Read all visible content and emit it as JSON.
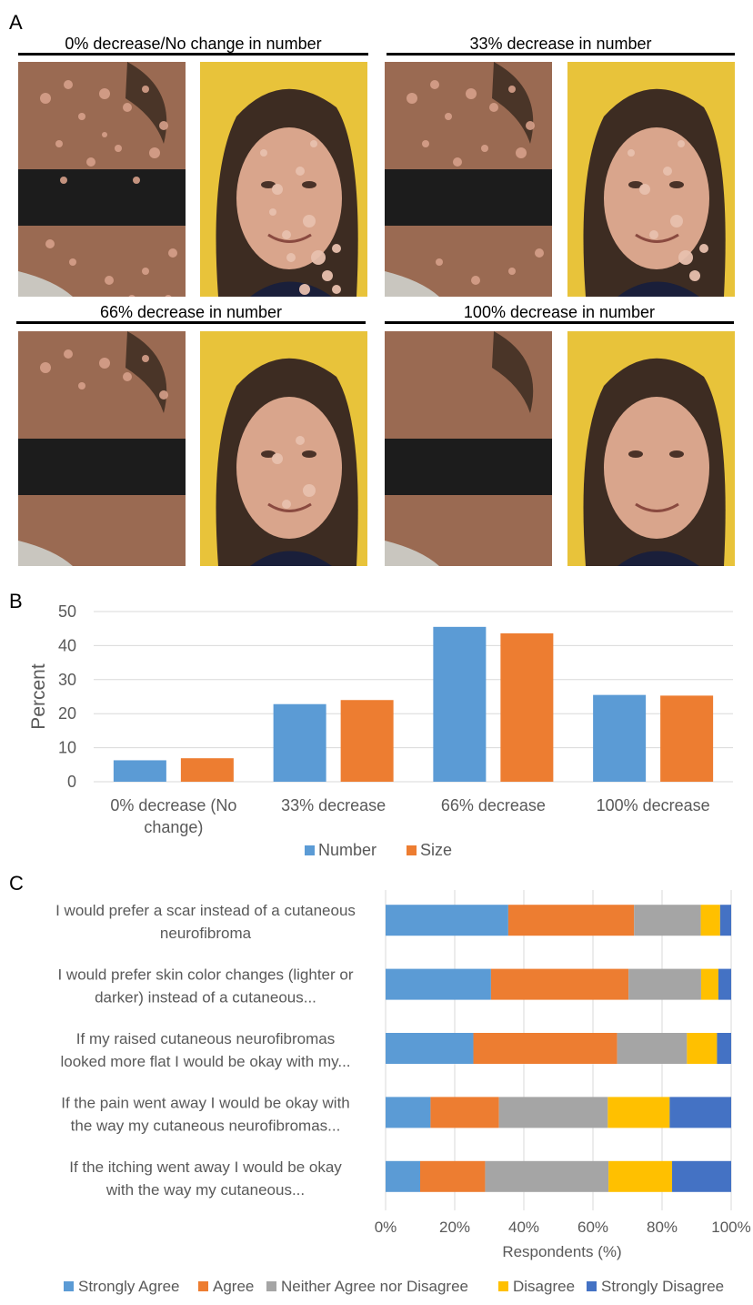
{
  "panel_a": {
    "letter": "A",
    "scenarios": [
      {
        "title": "0% decrease/No change in number",
        "lesions": 1.0
      },
      {
        "title": "33% decrease in number",
        "lesions": 0.67
      },
      {
        "title": "66% decrease in number",
        "lesions": 0.34
      },
      {
        "title": "100% decrease in number",
        "lesions": 0.0
      }
    ]
  },
  "chart_data": [
    {
      "panel": "B",
      "type": "bar",
      "categories": [
        [
          "0% decrease (No",
          "change)"
        ],
        [
          "33% decrease"
        ],
        [
          "66% decrease"
        ],
        [
          "100% decrease"
        ]
      ],
      "series": [
        {
          "name": "Number",
          "values": [
            6.3,
            22.8,
            45.5,
            25.5
          ],
          "color": "#5b9bd5"
        },
        {
          "name": "Size",
          "values": [
            6.9,
            24.0,
            43.6,
            25.3
          ],
          "color": "#ed7d31"
        }
      ],
      "ylabel": "Percent",
      "ylim": [
        0,
        50
      ],
      "yticks": [
        0,
        10,
        20,
        30,
        40,
        50
      ],
      "grid": true,
      "legend": "bottom"
    },
    {
      "panel": "C",
      "type": "bar",
      "orientation": "horizontal-stacked",
      "categories": [
        [
          "I would prefer a scar instead of a cutaneous",
          "neurofibroma"
        ],
        [
          "I would prefer skin color changes (lighter or",
          "darker) instead of a cutaneous..."
        ],
        [
          "If my raised cutaneous neurofibromas",
          "looked more flat I would be okay with my..."
        ],
        [
          "If the pain went away I would be okay with",
          "the way my cutaneous neurofibromas..."
        ],
        [
          "If the itching went away I would be okay",
          "with the way my cutaneous..."
        ]
      ],
      "series": [
        {
          "name": "Strongly Agree",
          "values": [
            35.5,
            30.5,
            25.4,
            13.0,
            10.0
          ],
          "color": "#5b9bd5"
        },
        {
          "name": "Agree",
          "values": [
            36.4,
            39.8,
            41.6,
            19.8,
            18.8
          ],
          "color": "#ed7d31"
        },
        {
          "name": "Neither Agree nor Disagree",
          "values": [
            19.3,
            21.0,
            20.2,
            31.5,
            35.7
          ],
          "color": "#a5a5a5"
        },
        {
          "name": "Disagree",
          "values": [
            5.6,
            5.0,
            8.7,
            17.9,
            18.4
          ],
          "color": "#ffc000"
        },
        {
          "name": "Strongly Disagree",
          "values": [
            3.2,
            3.7,
            4.1,
            17.8,
            17.1
          ],
          "color": "#4472c4"
        }
      ],
      "xlabel": "Respondents (%)",
      "xlim": [
        0,
        100
      ],
      "xticks": [
        "0%",
        "20%",
        "40%",
        "60%",
        "80%",
        "100%"
      ],
      "grid": true,
      "legend": "bottom"
    }
  ]
}
